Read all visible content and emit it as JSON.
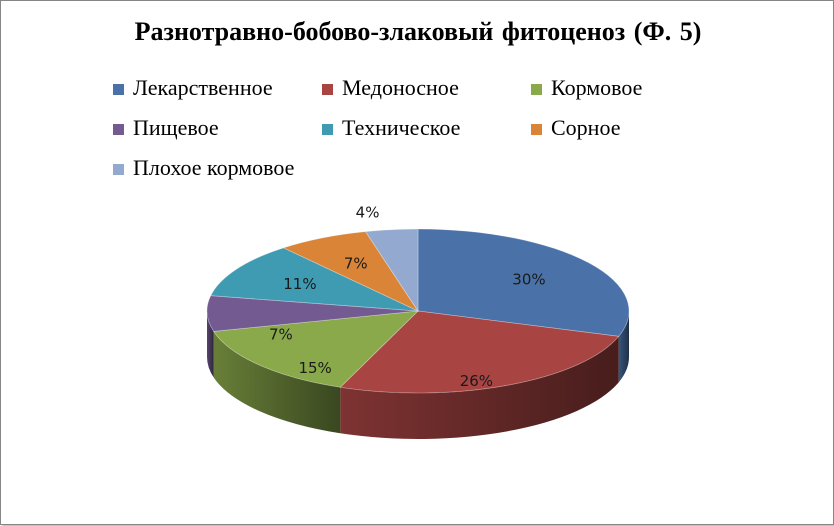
{
  "chart_data": {
    "type": "pie",
    "title": "Разнотравно-бобово-злаковый  фитоценоз (Ф. 5)",
    "legend_position": "top",
    "series": [
      {
        "name": "Лекарственное",
        "value": 30,
        "label": "30%",
        "color": "#4A72A8"
      },
      {
        "name": "Медоносное",
        "value": 26,
        "label": "26%",
        "color": "#A84442"
      },
      {
        "name": "Кормовое",
        "value": 15,
        "label": "15%",
        "color": "#8AA94B"
      },
      {
        "name": "Пищевое",
        "value": 7,
        "label": "7%",
        "color": "#735B92"
      },
      {
        "name": "Техническое",
        "value": 11,
        "label": "11%",
        "color": "#3F9BB2"
      },
      {
        "name": "Сорное",
        "value": 7,
        "label": "7%",
        "color": "#DA8438"
      },
      {
        "name": "Плохое кормовое",
        "value": 4,
        "label": "4%",
        "color": "#93A9CF"
      }
    ]
  }
}
